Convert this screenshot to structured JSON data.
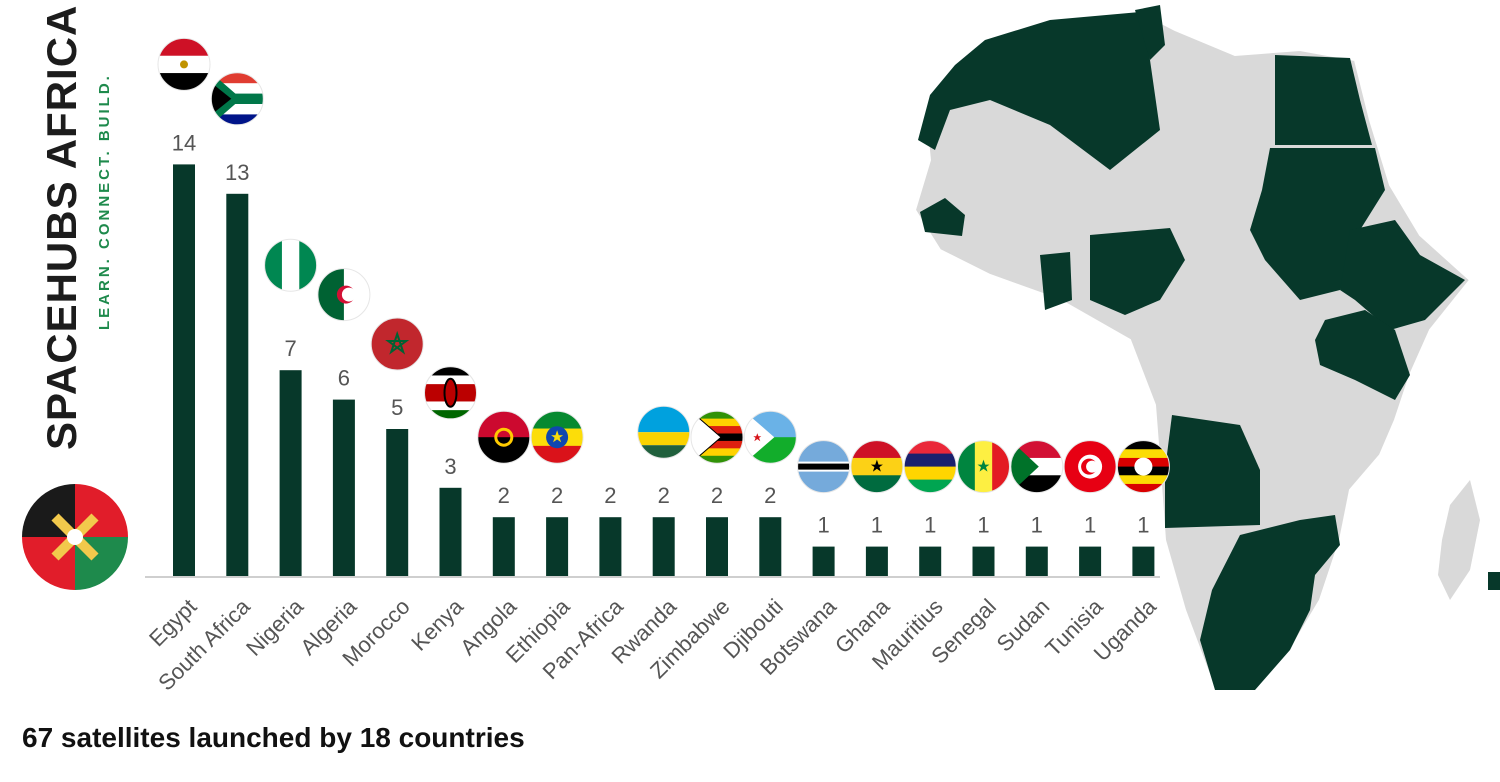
{
  "brand": {
    "name": "SPACEHUBS AFRICA",
    "tagline": "LEARN. CONNECT. BUILD."
  },
  "footer": {
    "summary": "67 satellites launched by 18 countries"
  },
  "colors": {
    "bar": "#07382a",
    "map_highlight": "#07382a",
    "map_base": "#d9d9d9",
    "label": "#555555"
  },
  "chart_data": {
    "type": "bar",
    "title": "",
    "xlabel": "",
    "ylabel": "",
    "ylim": [
      0,
      14
    ],
    "categories": [
      "Egypt",
      "South Africa",
      "Nigeria",
      "Algeria",
      "Morocco",
      "Kenya",
      "Angola",
      "Ethiopia",
      "Pan-Africa",
      "Rwanda",
      "Zimbabwe",
      "Djibouti",
      "Botswana",
      "Ghana",
      "Mauritius",
      "Senegal",
      "Sudan",
      "Tunisia",
      "Uganda"
    ],
    "values": [
      14,
      13,
      7,
      6,
      5,
      3,
      2,
      2,
      2,
      2,
      2,
      2,
      1,
      1,
      1,
      1,
      1,
      1,
      1
    ],
    "flags": [
      "egypt-flag-icon",
      "south-africa-flag-icon",
      "nigeria-flag-icon",
      "algeria-flag-icon",
      "morocco-flag-icon",
      "kenya-flag-icon",
      "angola-flag-icon",
      "ethiopia-flag-icon",
      "",
      "rwanda-flag-icon",
      "zimbabwe-flag-icon",
      "djibouti-flag-icon",
      "botswana-flag-icon",
      "ghana-flag-icon",
      "mauritius-flag-icon",
      "senegal-flag-icon",
      "sudan-flag-icon",
      "tunisia-flag-icon",
      "uganda-flag-icon"
    ],
    "grid": false,
    "legend": "none"
  }
}
